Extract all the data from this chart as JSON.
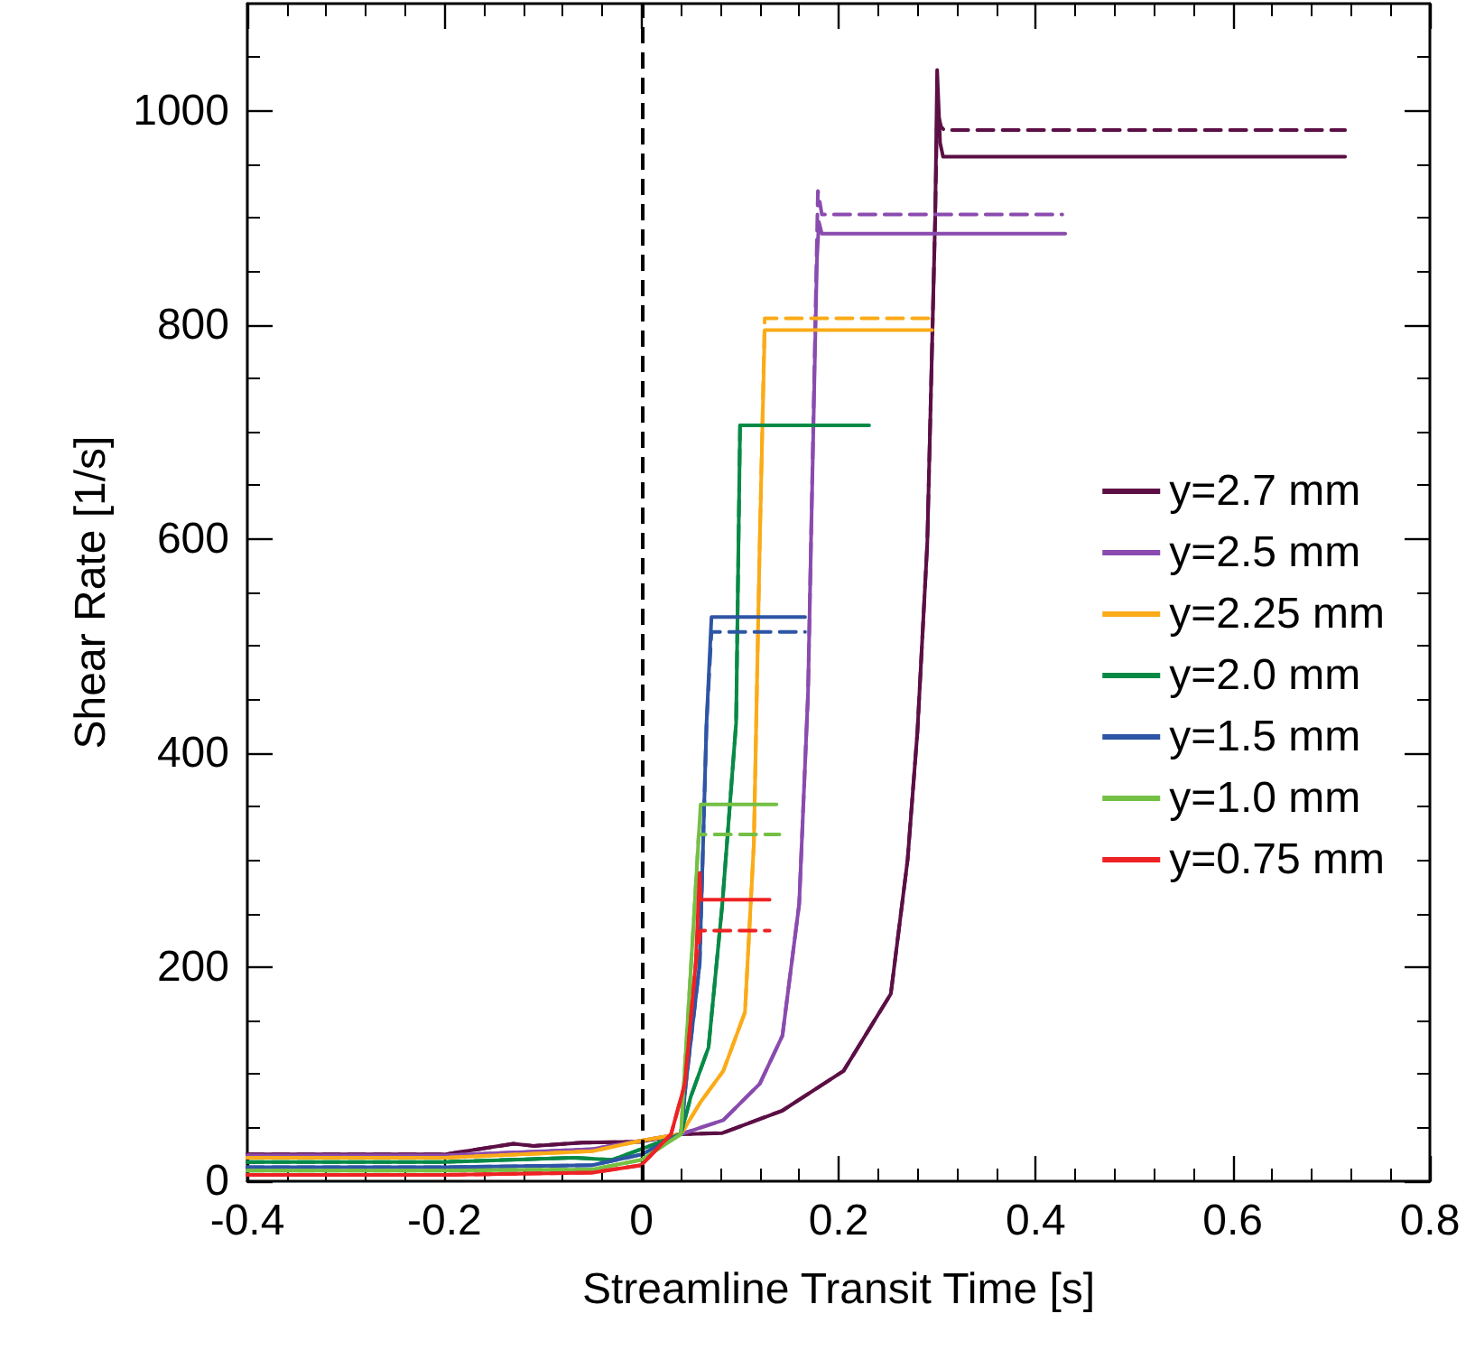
{
  "chart_data": {
    "type": "line",
    "xlabel": "Streamline Transit Time [s]",
    "ylabel": "Shear Rate [1/s]",
    "xlim": [
      -0.4,
      0.8
    ],
    "xticks": [
      -0.4,
      -0.2,
      0,
      0.2,
      0.4,
      0.6,
      0.8
    ],
    "ylim": [
      0,
      1100
    ],
    "yticks": [
      0,
      200,
      400,
      600,
      800,
      1000
    ],
    "grid": false,
    "legend": "right",
    "marker": "none",
    "ref_lines": [
      {
        "axis": "x",
        "value": 0,
        "color": "#000000",
        "line_style": "dashed"
      }
    ],
    "series": [
      {
        "name": "y=2.7 mm",
        "color": "#5c0f45",
        "line_style": "solid",
        "x": [
          -0.4,
          -0.2,
          -0.13,
          -0.11,
          -0.06,
          0,
          0.04,
          0.082,
          0.143,
          0.205,
          0.253,
          0.27,
          0.28,
          0.29,
          0.298,
          0.3,
          0.303,
          0.306,
          0.714
        ],
        "values": [
          25,
          25,
          35,
          33,
          36,
          37,
          44,
          45,
          66,
          103,
          175,
          300,
          420,
          596,
          900,
          1038,
          970,
          957,
          957
        ]
      },
      {
        "color": "#5c0f45",
        "line_style": "dashed",
        "x": [
          -0.4,
          -0.2,
          -0.13,
          -0.11,
          -0.06,
          0,
          0.04,
          0.082,
          0.143,
          0.205,
          0.253,
          0.27,
          0.28,
          0.29,
          0.298,
          0.3,
          0.304,
          0.307,
          0.714
        ],
        "values": [
          25,
          25,
          35,
          33,
          36,
          37,
          44,
          45,
          66,
          103,
          175,
          300,
          420,
          596,
          900,
          1000,
          985,
          982,
          982
        ]
      },
      {
        "name": "y=2.5 mm",
        "color": "#8a4baf",
        "line_style": "solid",
        "x": [
          -0.4,
          -0.2,
          -0.05,
          0,
          0.04,
          0.083,
          0.12,
          0.143,
          0.16,
          0.169,
          0.172,
          0.178,
          0.18,
          0.183,
          0.43
        ],
        "values": [
          24,
          24,
          30,
          38,
          44,
          57,
          91,
          136,
          259,
          456,
          597,
          860,
          896,
          885,
          885
        ]
      },
      {
        "color": "#8a4baf",
        "line_style": "dashed",
        "x": [
          -0.4,
          -0.2,
          -0.05,
          0,
          0.04,
          0.083,
          0.12,
          0.143,
          0.16,
          0.169,
          0.172,
          0.178,
          0.179,
          0.183,
          0.427
        ],
        "values": [
          24,
          24,
          30,
          38,
          44,
          57,
          91,
          136,
          259,
          456,
          597,
          880,
          925,
          903,
          903
        ]
      },
      {
        "name": "y=2.25 mm",
        "color": "#fbab18",
        "line_style": "solid",
        "x": [
          -0.4,
          -0.2,
          -0.05,
          0,
          0.04,
          0.06,
          0.083,
          0.105,
          0.114,
          0.12,
          0.125,
          0.295
        ],
        "values": [
          22,
          22,
          28,
          38,
          44,
          74,
          103,
          158,
          315,
          597,
          795,
          795
        ]
      },
      {
        "color": "#fbab18",
        "line_style": "dashed",
        "x": [
          -0.4,
          -0.2,
          -0.05,
          0,
          0.04,
          0.06,
          0.083,
          0.105,
          0.114,
          0.12,
          0.125,
          0.295
        ],
        "values": [
          22,
          22,
          28,
          38,
          44,
          74,
          103,
          158,
          315,
          597,
          806,
          806
        ]
      },
      {
        "name": "y=2.0 mm",
        "color": "#078a46",
        "line_style": "solid",
        "x": [
          -0.4,
          -0.2,
          -0.07,
          -0.03,
          0,
          0.04,
          0.05,
          0.068,
          0.082,
          0.096,
          0.1,
          0.231
        ],
        "values": [
          18,
          18,
          22,
          20,
          30,
          44,
          79,
          125,
          259,
          428,
          706,
          706
        ]
      },
      {
        "color": "#078a46",
        "line_style": "dashed",
        "x": [
          -0.4,
          -0.2,
          -0.07,
          -0.03,
          0,
          0.04,
          0.05,
          0.068,
          0.082,
          0.096,
          0.1,
          0.226
        ],
        "values": [
          18,
          18,
          22,
          20,
          30,
          44,
          79,
          125,
          259,
          428,
          706,
          706
        ]
      },
      {
        "name": "y=1.5 mm",
        "color": "#2e55a5",
        "line_style": "solid",
        "x": [
          -0.4,
          -0.2,
          -0.05,
          0,
          0.04,
          0.045,
          0.059,
          0.066,
          0.071,
          0.166
        ],
        "values": [
          13,
          13,
          15,
          25,
          44,
          91,
          203,
          428,
          527,
          527
        ]
      },
      {
        "color": "#2e55a5",
        "line_style": "dashed",
        "x": [
          -0.4,
          -0.2,
          -0.05,
          0,
          0.04,
          0.045,
          0.059,
          0.066,
          0.071,
          0.166
        ],
        "values": [
          13,
          13,
          15,
          25,
          44,
          91,
          203,
          428,
          513,
          513
        ]
      },
      {
        "name": "y=1.0 mm",
        "color": "#74c044",
        "line_style": "solid",
        "x": [
          -0.4,
          -0.2,
          -0.05,
          0,
          0.04,
          0.043,
          0.054,
          0.06,
          0.137
        ],
        "values": [
          10,
          10,
          11,
          20,
          44,
          91,
          259,
          352,
          352
        ]
      },
      {
        "color": "#74c044",
        "line_style": "dashed",
        "x": [
          -0.4,
          -0.2,
          -0.05,
          0,
          0.04,
          0.043,
          0.054,
          0.058,
          0.14
        ],
        "values": [
          10,
          10,
          11,
          20,
          44,
          91,
          259,
          324,
          324
        ]
      },
      {
        "name": "y=0.75 mm",
        "color": "#ee2224",
        "line_style": "solid",
        "x": [
          -0.4,
          -0.2,
          -0.05,
          0,
          0.03,
          0.044,
          0.055,
          0.059,
          0.06,
          0.13
        ],
        "values": [
          6,
          6,
          8,
          15,
          44,
          91,
          203,
          288,
          263,
          263
        ]
      },
      {
        "color": "#ee2224",
        "line_style": "dashed",
        "x": [
          -0.4,
          -0.2,
          -0.05,
          0,
          0.03,
          0.044,
          0.055,
          0.06,
          0.13
        ],
        "values": [
          6,
          6,
          8,
          15,
          44,
          91,
          203,
          234,
          234
        ]
      }
    ]
  }
}
